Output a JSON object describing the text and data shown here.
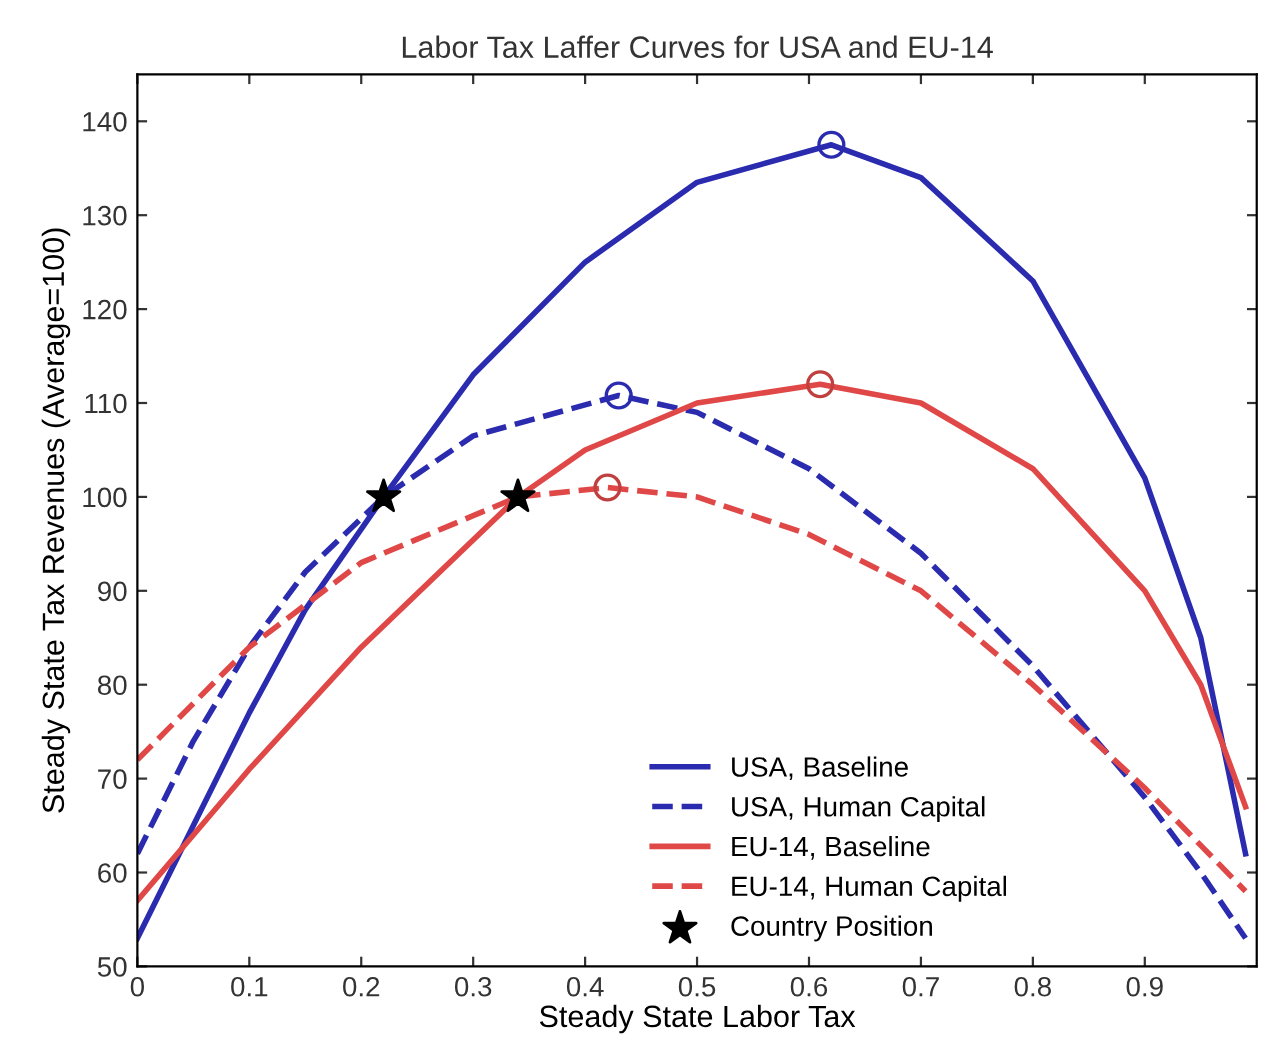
{
  "chart_data": {
    "type": "line",
    "title": "Labor Tax Laffer Curves for USA and EU-14",
    "xlabel": "Steady State Labor Tax",
    "ylabel": "Steady State Tax Revenues (Average=100)",
    "xlim": [
      0,
      1
    ],
    "xticks": [
      0,
      0.1,
      0.2,
      0.3,
      0.4,
      0.5,
      0.6,
      0.7,
      0.8,
      0.9
    ],
    "ylim": [
      50,
      145
    ],
    "yticks": [
      50,
      60,
      70,
      80,
      90,
      100,
      110,
      120,
      130,
      140
    ],
    "grid": false,
    "legend": "bottom right",
    "series": [
      {
        "name": "USA, Baseline",
        "color": "#2b2bb0",
        "line_style": "solid",
        "marker": "none",
        "x": [
          0,
          0.05,
          0.1,
          0.15,
          0.22,
          0.3,
          0.4,
          0.5,
          0.62,
          0.7,
          0.8,
          0.9,
          0.95,
          0.99
        ],
        "values": [
          53,
          65,
          77,
          88,
          100,
          113,
          125,
          133.5,
          137.5,
          134,
          123,
          102,
          85,
          62
        ]
      },
      {
        "name": "USA, Human Capital",
        "color": "#2b2bb0",
        "line_style": "dashed",
        "marker": "none",
        "x": [
          0,
          0.05,
          0.1,
          0.15,
          0.22,
          0.3,
          0.43,
          0.5,
          0.6,
          0.7,
          0.8,
          0.9,
          0.95,
          0.99
        ],
        "values": [
          62,
          74,
          84,
          92,
          100,
          106.5,
          110.8,
          109,
          103,
          94,
          82,
          68,
          60,
          53
        ]
      },
      {
        "name": "EU-14, Baseline",
        "color": "#e04848",
        "line_style": "solid",
        "marker": "none",
        "x": [
          0,
          0.05,
          0.1,
          0.2,
          0.34,
          0.4,
          0.5,
          0.61,
          0.7,
          0.8,
          0.9,
          0.95,
          0.99
        ],
        "values": [
          57,
          64,
          71,
          84,
          100,
          105,
          110,
          112,
          110,
          103,
          90,
          80,
          67
        ]
      },
      {
        "name": "EU-14, Human Capital",
        "color": "#e04848",
        "line_style": "dashed",
        "marker": "none",
        "x": [
          0,
          0.05,
          0.1,
          0.2,
          0.34,
          0.42,
          0.5,
          0.6,
          0.7,
          0.8,
          0.9,
          0.99
        ],
        "values": [
          72,
          78,
          84,
          93,
          100,
          101,
          100,
          96,
          90,
          80,
          69,
          58
        ]
      },
      {
        "type": "scatter",
        "marker": "circle",
        "colors": [
          "#2b2bb0",
          "#2b2bb0",
          "#c04040",
          "#c04040"
        ],
        "x": [
          0.62,
          0.43,
          0.61,
          0.42
        ],
        "values": [
          137.5,
          110.8,
          112,
          101
        ]
      },
      {
        "name": "Country Position",
        "type": "scatter",
        "marker": "star",
        "color": "#000000",
        "x": [
          0.22,
          0.34
        ],
        "values": [
          100,
          100
        ]
      }
    ]
  }
}
